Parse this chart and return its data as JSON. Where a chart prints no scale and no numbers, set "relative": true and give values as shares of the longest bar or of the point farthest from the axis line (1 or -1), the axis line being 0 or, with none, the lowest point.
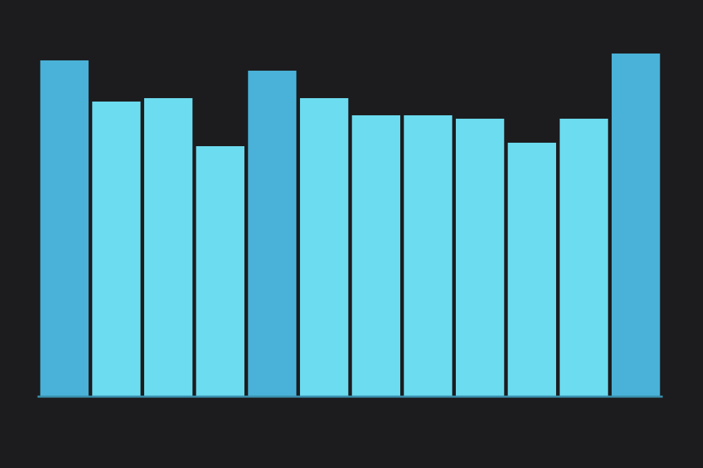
{
  "chart_data": {
    "type": "bar",
    "relative": true,
    "categories": [
      null,
      null,
      null,
      null,
      null,
      null,
      null,
      null,
      null,
      null,
      null,
      null
    ],
    "series": [
      {
        "colors": [
          "#4ab2d8",
          "#6cdcf0",
          "#6cdcf0",
          "#6cdcf0",
          "#4ab2d8",
          "#6cdcf0",
          "#6cdcf0",
          "#6cdcf0",
          "#6cdcf0",
          "#6cdcf0",
          "#6cdcf0",
          "#4ab2d8"
        ],
        "values": [
          0.98,
          0.86,
          0.87,
          0.73,
          0.95,
          0.87,
          0.82,
          0.82,
          0.81,
          0.74,
          0.81,
          1
        ]
      }
    ]
  }
}
